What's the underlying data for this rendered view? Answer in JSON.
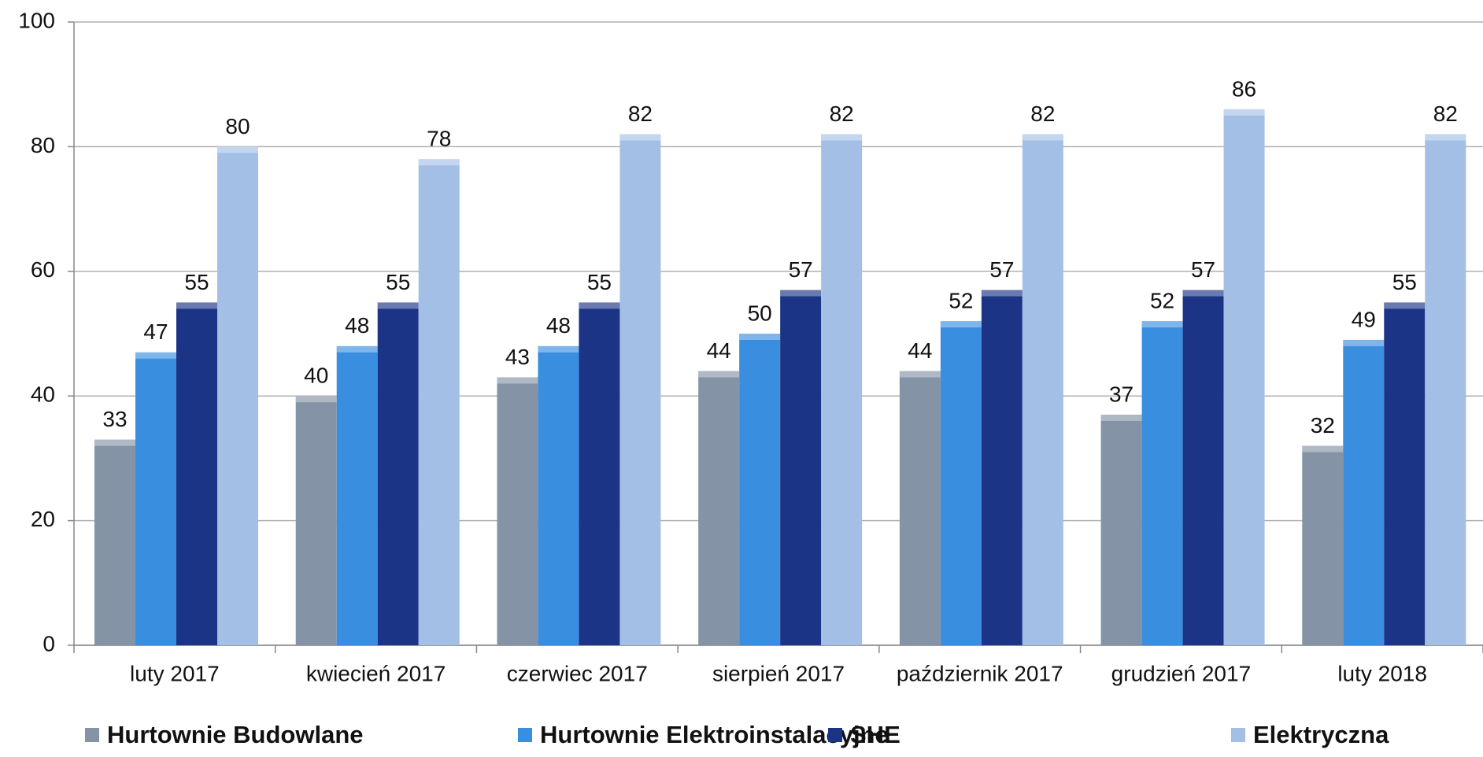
{
  "chart_data": {
    "type": "bar",
    "categories": [
      "luty 2017",
      "kwiecień 2017",
      "czerwiec 2017",
      "sierpień 2017",
      "październik 2017",
      "grudzień 2017",
      "luty 2018"
    ],
    "series": [
      {
        "name": "Hurtownie Budowlane",
        "color": "#8494a6",
        "values": [
          33,
          40,
          43,
          44,
          44,
          37,
          32
        ]
      },
      {
        "name": "Hurtownie Elektroinstalacyjne",
        "color": "#3a8ee0",
        "values": [
          47,
          48,
          48,
          50,
          52,
          52,
          49
        ]
      },
      {
        "name": "SHE",
        "color": "#1b3485",
        "values": [
          55,
          55,
          55,
          57,
          57,
          57,
          55
        ]
      },
      {
        "name": "Elektryczna",
        "color": "#a3bfe6",
        "values": [
          80,
          78,
          82,
          82,
          82,
          86,
          82
        ]
      }
    ],
    "ylim": [
      0,
      100
    ],
    "yticks": [
      0,
      20,
      40,
      60,
      80,
      100
    ],
    "grid": true,
    "legend": "bottom"
  }
}
